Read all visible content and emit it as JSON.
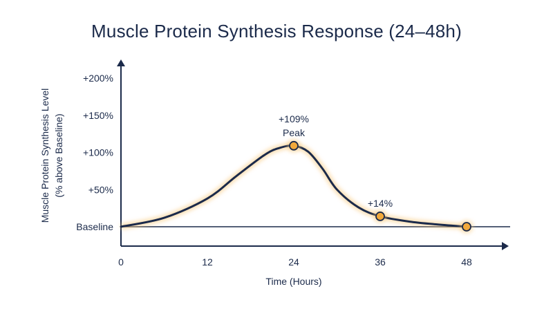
{
  "chart_data": {
    "type": "line",
    "title": "Muscle Protein Synthesis Response (24–48h)",
    "xlabel": "Time (Hours)",
    "ylabel_line1": "Muscle Protein Synthesis Level",
    "ylabel_line2": "(% above Baseline)",
    "x_ticks": [
      0,
      12,
      24,
      36,
      48
    ],
    "y_ticks": [
      {
        "value": 0,
        "label": "Baseline"
      },
      {
        "value": 50,
        "label": "+50%"
      },
      {
        "value": 100,
        "label": "+100%"
      },
      {
        "value": 150,
        "label": "+150%"
      },
      {
        "value": 200,
        "label": "+200%"
      }
    ],
    "xlim": [
      0,
      48
    ],
    "ylim": [
      0,
      200
    ],
    "series": [
      {
        "x": [
          0,
          6,
          12,
          16,
          20,
          22,
          24,
          26,
          28,
          30,
          33,
          36,
          40,
          44,
          48
        ],
        "y": [
          0,
          12,
          38,
          68,
          97,
          106,
          109,
          101,
          78,
          50,
          26,
          14,
          7,
          3,
          0
        ]
      }
    ],
    "markers": [
      {
        "x": 24,
        "y": 109
      },
      {
        "x": 36,
        "y": 14
      },
      {
        "x": 48,
        "y": 0
      }
    ],
    "annotations": [
      {
        "x": 24,
        "y": 109,
        "lines": [
          "+109%",
          "Peak"
        ]
      },
      {
        "x": 36,
        "y": 14,
        "lines": [
          "+14%"
        ]
      }
    ],
    "colors": {
      "axis": "#1b2a4a",
      "line": "#1b2a4a",
      "marker_fill": "#f2a93b",
      "glow": "#f7c77a"
    }
  }
}
